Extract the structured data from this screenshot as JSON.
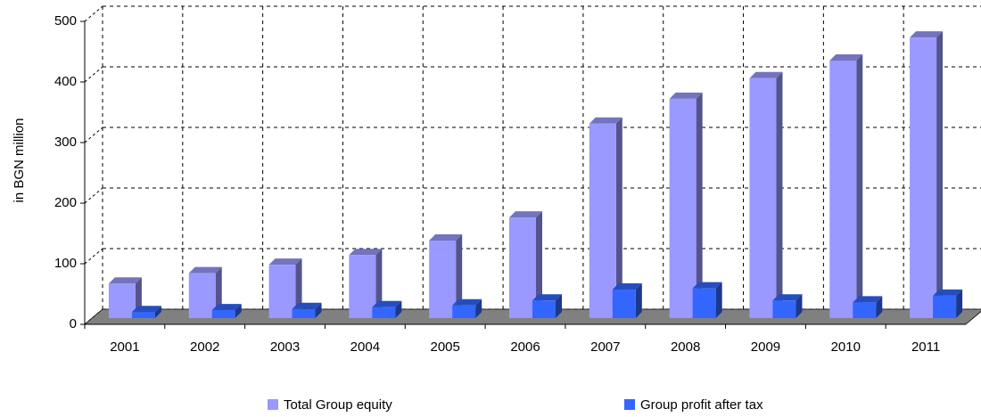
{
  "chart_data": {
    "type": "bar3d",
    "y_label": "in BGN million",
    "categories": [
      "2001",
      "2002",
      "2003",
      "2004",
      "2005",
      "2006",
      "2007",
      "2008",
      "2009",
      "2010",
      "2011"
    ],
    "series": [
      {
        "name": "Total Group equity",
        "color": "#9999ff",
        "values": [
          57,
          74,
          88,
          104,
          128,
          166,
          321,
          362,
          396,
          425,
          463
        ]
      },
      {
        "name": "Group profit after tax",
        "color": "#3366ff",
        "values": [
          10,
          13,
          15,
          18,
          21,
          29,
          47,
          49,
          29,
          26,
          37
        ]
      }
    ],
    "ylim": [
      0,
      500
    ],
    "yticks": [
      0,
      100,
      200,
      300,
      400,
      500
    ],
    "grid": true
  }
}
